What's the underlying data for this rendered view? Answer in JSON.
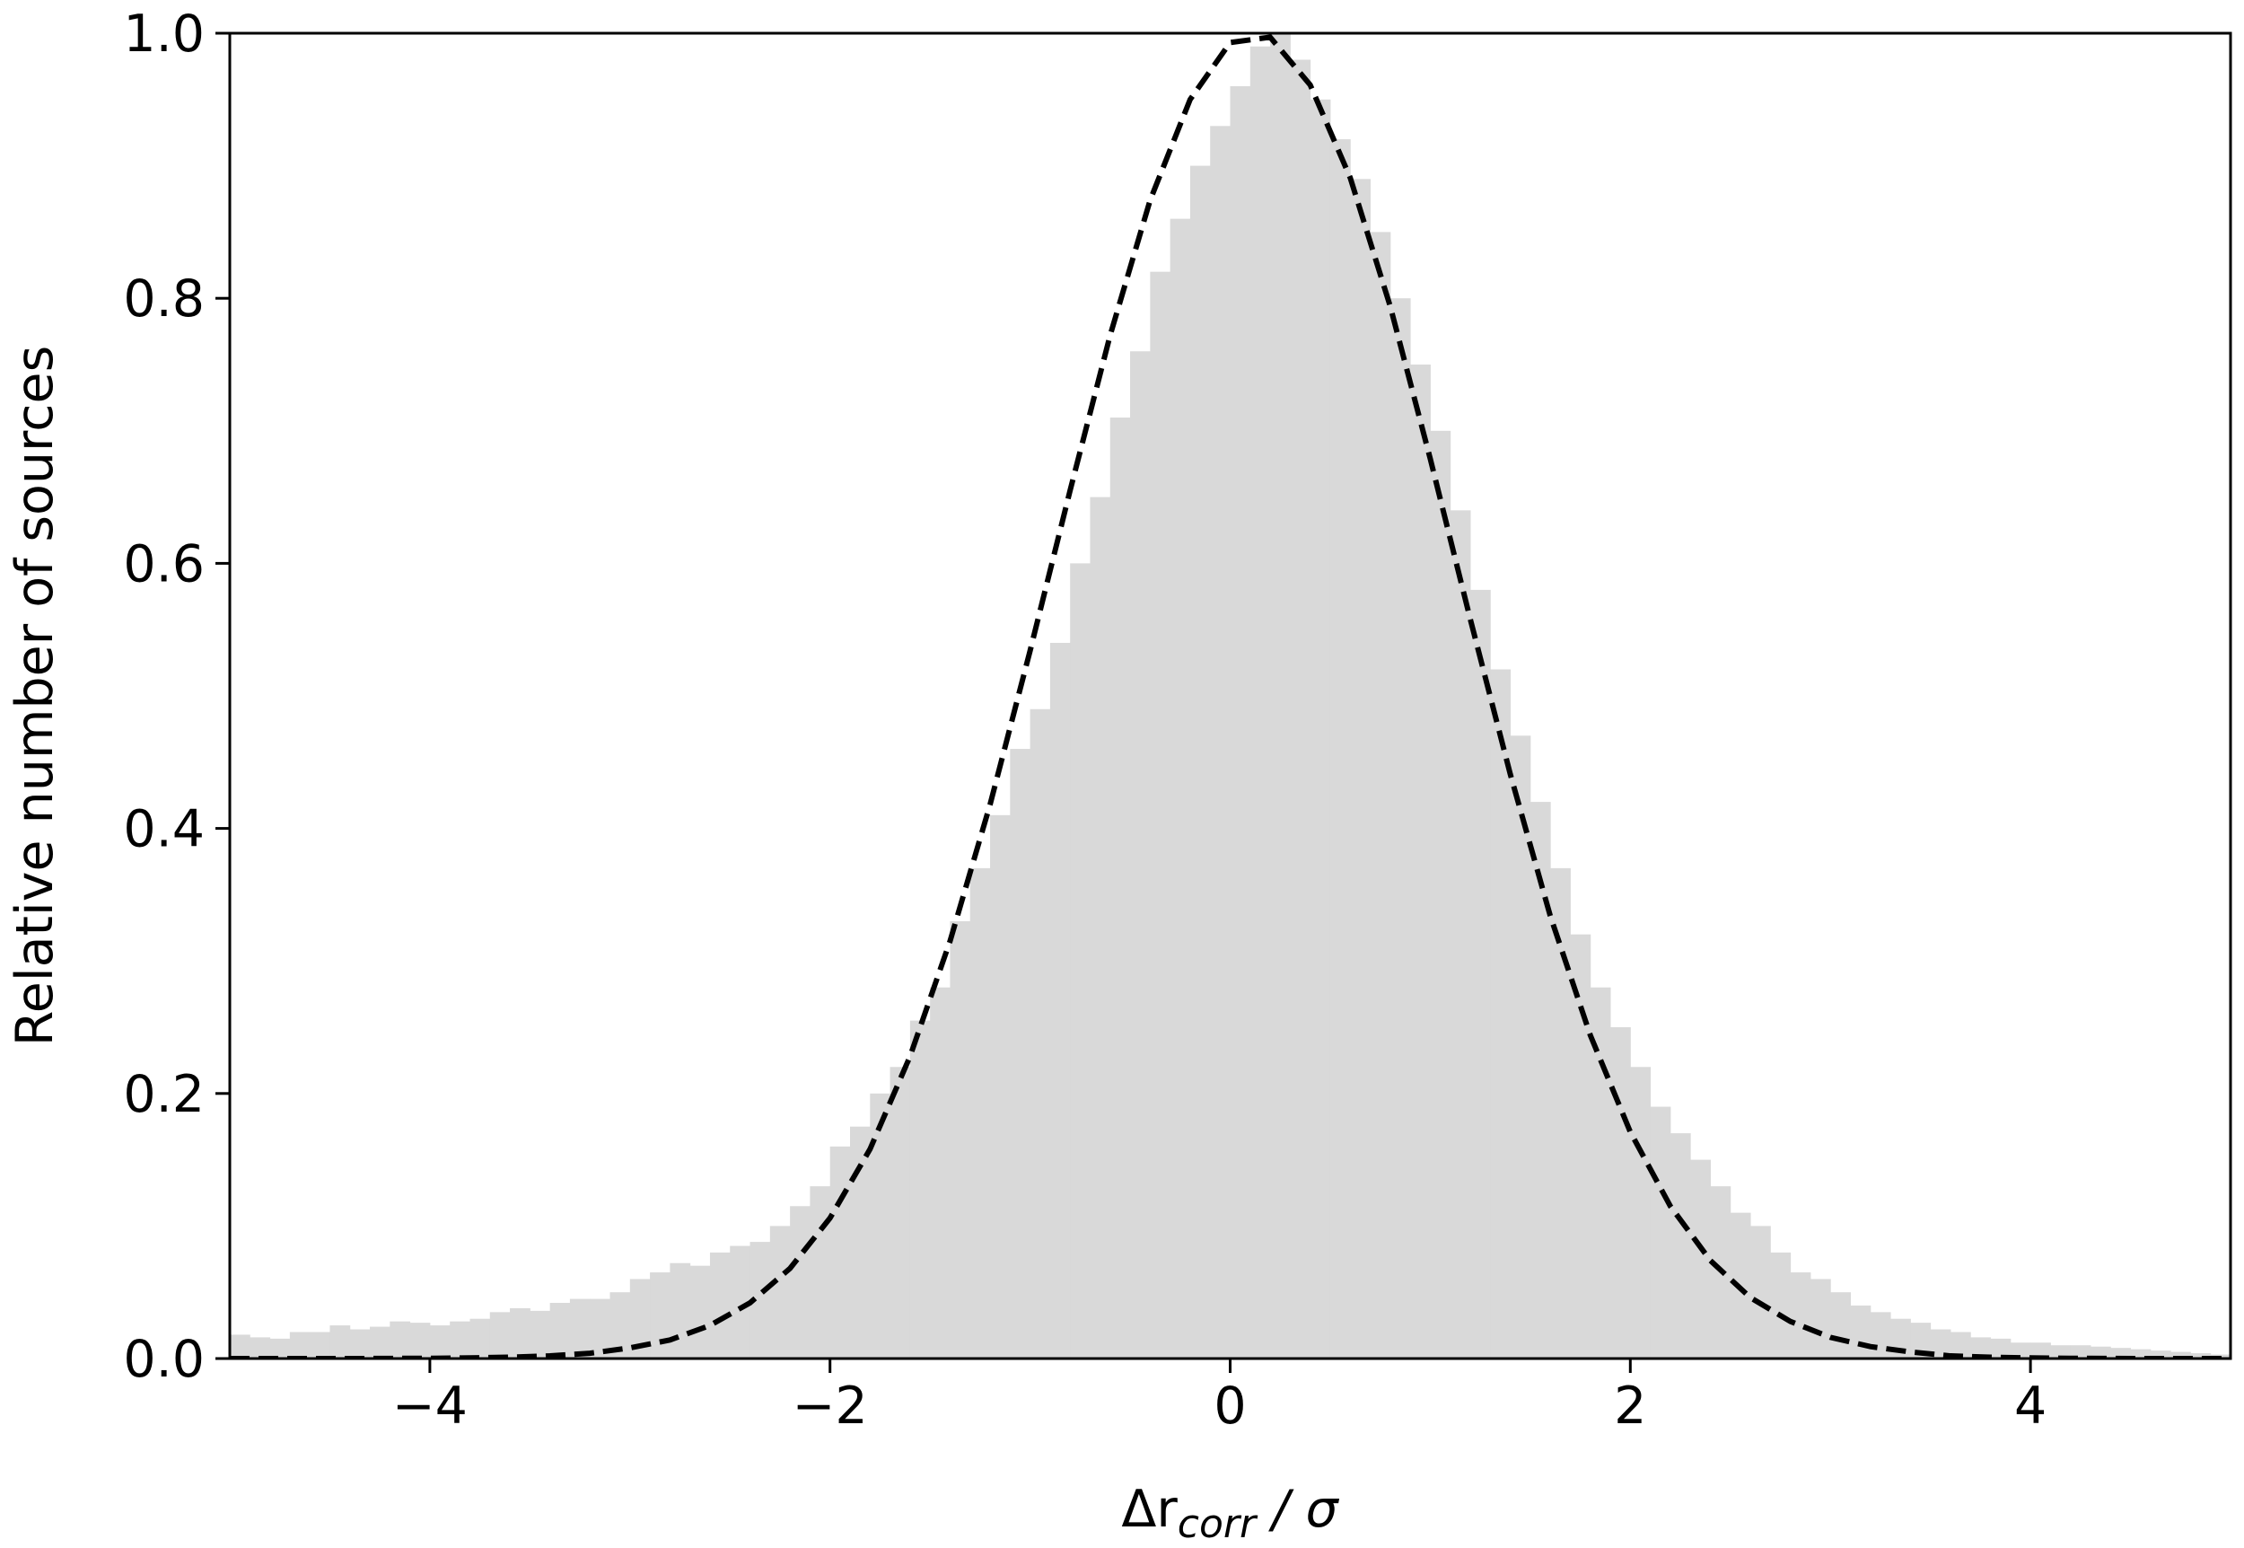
{
  "chart_data": {
    "type": "histogram",
    "xlabel": {
      "base": "Δr",
      "sub": "corr",
      "rest": " / σ"
    },
    "ylabel": "Relative number of sources",
    "color": "#d9d9d9",
    "xlim": [
      -5,
      5
    ],
    "ylim": [
      0,
      1
    ],
    "xticks": [
      {
        "value": -4,
        "label": "−4"
      },
      {
        "value": -2,
        "label": "−2"
      },
      0,
      2,
      4
    ],
    "yticks": [
      {
        "value": 0,
        "label": "0.0"
      },
      0.2,
      0.4,
      0.6,
      0.8,
      {
        "value": 1,
        "label": "1.0"
      }
    ],
    "bins": [
      -5,
      -4.9,
      -4.8,
      -4.7,
      -4.6,
      -4.5,
      -4.4,
      -4.3,
      -4.2,
      -4.1,
      -4,
      -3.9,
      -3.8,
      -3.7,
      -3.6,
      -3.5,
      -3.4,
      -3.3,
      -3.2,
      -3.1,
      -3,
      -2.9,
      -2.8,
      -2.7,
      -2.6,
      -2.5,
      -2.4,
      -2.3,
      -2.2,
      -2.1,
      -2,
      -1.9,
      -1.8,
      -1.7,
      -1.6,
      -1.5,
      -1.4,
      -1.3,
      -1.2,
      -1.1,
      -1,
      -0.9,
      -0.8,
      -0.7,
      -0.6,
      -0.5,
      -0.4,
      -0.3,
      -0.2,
      -0.1,
      0,
      0.1,
      0.2,
      0.3,
      0.4,
      0.5,
      0.6,
      0.7,
      0.8,
      0.9,
      1,
      1.1,
      1.2,
      1.3,
      1.4,
      1.5,
      1.6,
      1.7,
      1.8,
      1.9,
      2,
      2.1,
      2.2,
      2.3,
      2.4,
      2.5,
      2.6,
      2.7,
      2.8,
      2.9,
      3,
      3.1,
      3.2,
      3.3,
      3.4,
      3.5,
      3.6,
      3.7,
      3.8,
      3.9,
      4,
      4.1,
      4.2,
      4.3,
      4.4,
      4.5,
      4.6,
      4.7,
      4.8,
      4.9,
      5
    ],
    "values": [
      0.018,
      0.016,
      0.015,
      0.02,
      0.02,
      0.025,
      0.022,
      0.024,
      0.028,
      0.027,
      0.025,
      0.028,
      0.03,
      0.035,
      0.038,
      0.036,
      0.042,
      0.045,
      0.045,
      0.05,
      0.06,
      0.065,
      0.072,
      0.07,
      0.08,
      0.085,
      0.088,
      0.1,
      0.115,
      0.13,
      0.16,
      0.175,
      0.2,
      0.22,
      0.255,
      0.28,
      0.33,
      0.37,
      0.41,
      0.46,
      0.49,
      0.54,
      0.6,
      0.65,
      0.71,
      0.76,
      0.82,
      0.86,
      0.9,
      0.93,
      0.96,
      0.99,
      1.0,
      0.98,
      0.95,
      0.92,
      0.89,
      0.85,
      0.8,
      0.75,
      0.7,
      0.64,
      0.58,
      0.52,
      0.47,
      0.42,
      0.37,
      0.32,
      0.28,
      0.25,
      0.22,
      0.19,
      0.17,
      0.15,
      0.13,
      0.11,
      0.1,
      0.08,
      0.065,
      0.06,
      0.05,
      0.04,
      0.035,
      0.03,
      0.027,
      0.022,
      0.02,
      0.016,
      0.015,
      0.012,
      0.012,
      0.01,
      0.01,
      0.009,
      0.008,
      0.007,
      0.006,
      0.005,
      0.004,
      0.003
    ],
    "lines": [
      {
        "color": "#000000",
        "style": "dashed",
        "x": [
          -5,
          -4.8,
          -4.6,
          -4.4,
          -4.2,
          -4,
          -3.8,
          -3.6,
          -3.4,
          -3.2,
          -3,
          -2.8,
          -2.6,
          -2.4,
          -2.2,
          -2,
          -1.8,
          -1.6,
          -1.4,
          -1.2,
          -1,
          -0.8,
          -0.6,
          -0.4,
          -0.2,
          0,
          0.2,
          0.4,
          0.6,
          0.8,
          1,
          1.2,
          1.4,
          1.6,
          1.8,
          2,
          2.2,
          2.4,
          2.6,
          2.8,
          3,
          3.2,
          3.4,
          3.6,
          3.8,
          4,
          4.2,
          4.4,
          4.6,
          4.8,
          5
        ],
        "values": [
          0,
          0,
          0,
          0,
          0.0001,
          0.0002,
          0.0005,
          0.001,
          0.002,
          0.004,
          0.008,
          0.014,
          0.025,
          0.042,
          0.068,
          0.106,
          0.158,
          0.228,
          0.315,
          0.418,
          0.534,
          0.655,
          0.772,
          0.874,
          0.95,
          0.993,
          0.997,
          0.961,
          0.891,
          0.794,
          0.679,
          0.558,
          0.441,
          0.334,
          0.244,
          0.171,
          0.115,
          0.074,
          0.046,
          0.028,
          0.016,
          0.009,
          0.005,
          0.002,
          0.001,
          0.0005,
          0.0002,
          0.0001,
          0,
          0,
          0
        ]
      }
    ]
  }
}
